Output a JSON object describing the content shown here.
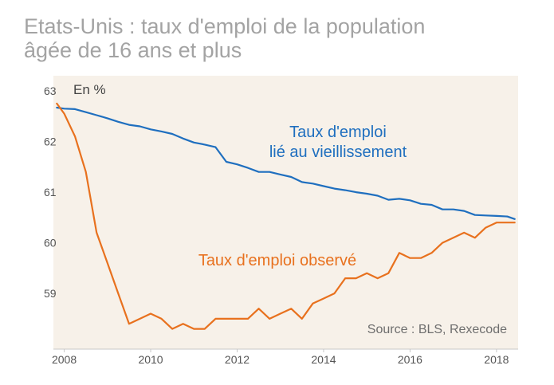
{
  "title": {
    "line1": "Etats-Unis : taux d'emploi de la population",
    "line2": "âgée de 16 ans et plus"
  },
  "chart_data": {
    "type": "line",
    "unit_label": "En %",
    "source": "Source : BLS, Rexecode",
    "x_ticks": [
      "2008",
      "2010",
      "2012",
      "2014",
      "2016",
      "2018"
    ],
    "y_ticks": [
      "63",
      "62",
      "61",
      "60",
      "59"
    ],
    "xlim": [
      2007.75,
      2018.5
    ],
    "ylim": [
      57.9,
      63.3
    ],
    "grid": false,
    "series": [
      {
        "name": "Taux d'emploi\nlié au vieillissement",
        "color": "#1f6fbf",
        "x": [
          2007.83,
          2008.0,
          2008.25,
          2008.5,
          2008.75,
          2009.0,
          2009.25,
          2009.5,
          2009.75,
          2010.0,
          2010.25,
          2010.5,
          2010.75,
          2011.0,
          2011.25,
          2011.5,
          2011.75,
          2012.0,
          2012.25,
          2012.5,
          2012.75,
          2013.0,
          2013.25,
          2013.5,
          2013.75,
          2014.0,
          2014.25,
          2014.5,
          2014.75,
          2015.0,
          2015.25,
          2015.5,
          2015.75,
          2016.0,
          2016.25,
          2016.5,
          2016.75,
          2017.0,
          2017.25,
          2017.5,
          2017.75,
          2018.0,
          2018.25,
          2018.42
        ],
        "values": [
          62.67,
          62.65,
          62.64,
          62.58,
          62.52,
          62.46,
          62.39,
          62.33,
          62.3,
          62.24,
          62.2,
          62.15,
          62.06,
          61.98,
          61.94,
          61.89,
          61.6,
          61.55,
          61.48,
          61.4,
          61.4,
          61.35,
          61.3,
          61.2,
          61.17,
          61.12,
          61.07,
          61.04,
          61.0,
          60.97,
          60.93,
          60.85,
          60.87,
          60.84,
          60.77,
          60.75,
          60.66,
          60.66,
          60.63,
          60.55,
          60.54,
          60.53,
          60.52,
          60.47
        ]
      },
      {
        "name": "Taux d'emploi observé",
        "color": "#e8711e",
        "x": [
          2007.83,
          2008.0,
          2008.25,
          2008.5,
          2008.75,
          2009.0,
          2009.25,
          2009.5,
          2009.75,
          2010.0,
          2010.25,
          2010.5,
          2010.75,
          2011.0,
          2011.25,
          2011.5,
          2011.75,
          2012.0,
          2012.25,
          2012.5,
          2012.75,
          2013.0,
          2013.25,
          2013.5,
          2013.75,
          2014.0,
          2014.25,
          2014.5,
          2014.75,
          2015.0,
          2015.25,
          2015.5,
          2015.75,
          2016.0,
          2016.25,
          2016.5,
          2016.75,
          2017.0,
          2017.25,
          2017.5,
          2017.75,
          2018.0,
          2018.25,
          2018.42
        ],
        "values": [
          62.75,
          62.55,
          62.1,
          61.4,
          60.2,
          59.6,
          59.0,
          58.4,
          58.5,
          58.6,
          58.5,
          58.3,
          58.4,
          58.3,
          58.3,
          58.5,
          58.5,
          58.5,
          58.5,
          58.7,
          58.5,
          58.6,
          58.7,
          58.5,
          58.8,
          58.9,
          59.0,
          59.3,
          59.3,
          59.4,
          59.3,
          59.4,
          59.8,
          59.7,
          59.7,
          59.8,
          60.0,
          60.1,
          60.2,
          60.1,
          60.3,
          60.4,
          60.4,
          60.4
        ]
      }
    ]
  }
}
